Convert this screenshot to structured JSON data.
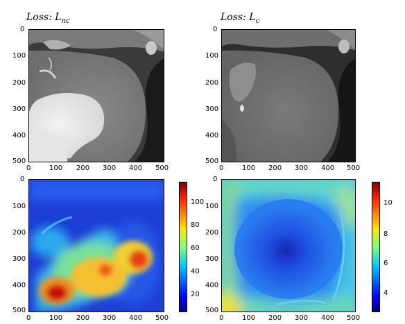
{
  "titles": {
    "left": {
      "prefix": "Loss: L",
      "sub": "nc"
    },
    "right": {
      "prefix": "Loss: L",
      "sub": "c"
    }
  },
  "ticks": {
    "y": [
      "0",
      "100",
      "200",
      "300",
      "400",
      "500"
    ],
    "x": [
      "0",
      "100",
      "200",
      "300",
      "400",
      "500"
    ]
  },
  "colorbar_left": [
    "100",
    "80",
    "60",
    "40",
    "20"
  ],
  "colorbar_right": [
    "10",
    "8",
    "6",
    "4"
  ]
}
